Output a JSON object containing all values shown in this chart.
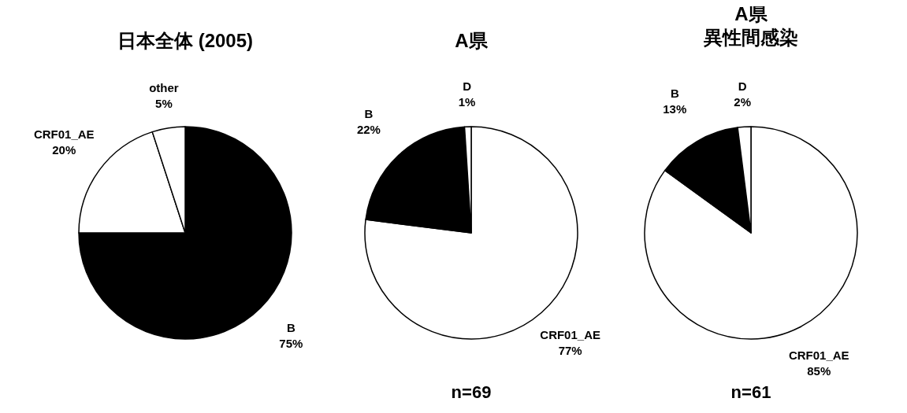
{
  "chart_data": [
    {
      "type": "pie",
      "title": "日本全体 (2005)",
      "categories": [
        "B",
        "CRF01_AE",
        "other"
      ],
      "values": [
        75,
        20,
        5
      ],
      "colors": [
        "#000000",
        "#ffffff",
        "#ffffff"
      ],
      "value_labels": [
        "75%",
        "20%",
        "5%"
      ]
    },
    {
      "type": "pie",
      "title": "A県",
      "categories": [
        "CRF01_AE",
        "B",
        "D"
      ],
      "values": [
        77,
        22,
        1
      ],
      "colors": [
        "#ffffff",
        "#000000",
        "#ffffff"
      ],
      "value_labels": [
        "77%",
        "22%",
        "1%"
      ],
      "annotations": [
        "n=69"
      ]
    },
    {
      "type": "pie",
      "title": "A県",
      "subtitle": "異性間感染",
      "categories": [
        "CRF01_AE",
        "B",
        "D"
      ],
      "values": [
        85,
        13,
        2
      ],
      "colors": [
        "#ffffff",
        "#000000",
        "#ffffff"
      ],
      "value_labels": [
        "85%",
        "13%",
        "2%"
      ],
      "annotations": [
        "n=61"
      ]
    }
  ]
}
